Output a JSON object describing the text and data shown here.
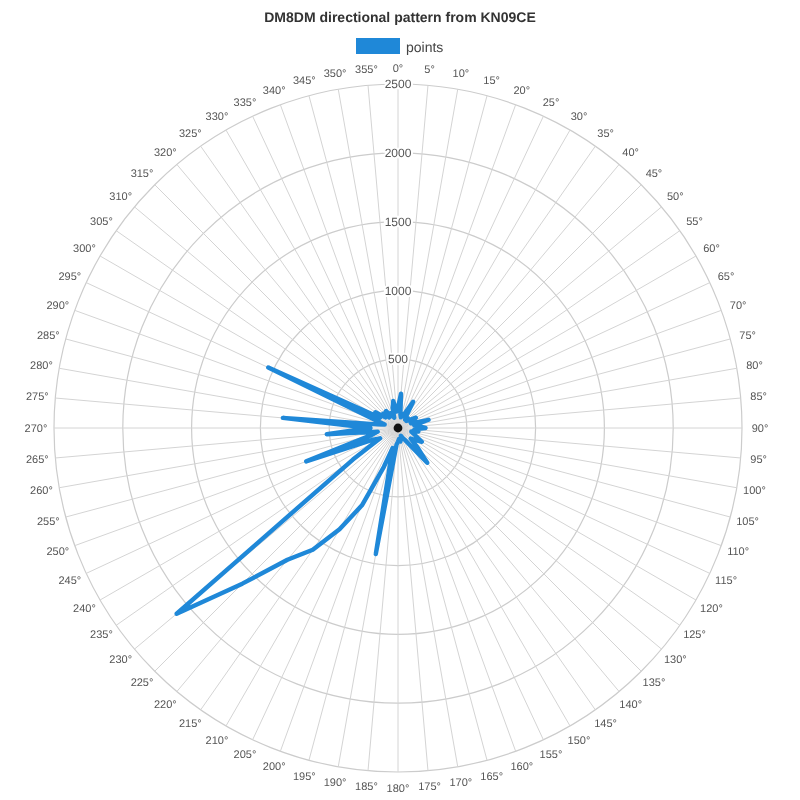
{
  "chart_data": {
    "type": "radar",
    "title": "DM8DM directional pattern from KN09CE",
    "categories": [
      "0°",
      "5°",
      "10°",
      "15°",
      "20°",
      "25°",
      "30°",
      "35°",
      "40°",
      "45°",
      "50°",
      "55°",
      "60°",
      "65°",
      "70°",
      "75°",
      "80°",
      "85°",
      "90°",
      "95°",
      "100°",
      "105°",
      "110°",
      "115°",
      "120°",
      "125°",
      "130°",
      "135°",
      "140°",
      "145°",
      "150°",
      "155°",
      "160°",
      "165°",
      "170°",
      "175°",
      "180°",
      "185°",
      "190°",
      "195°",
      "200°",
      "205°",
      "210°",
      "215°",
      "220°",
      "225°",
      "230°",
      "235°",
      "240°",
      "245°",
      "250°",
      "255°",
      "260°",
      "265°",
      "270°",
      "275°",
      "280°",
      "285°",
      "290°",
      "295°",
      "300°",
      "305°",
      "310°",
      "315°",
      "320°",
      "325°",
      "330°",
      "335°",
      "340°",
      "345°",
      "350°",
      "355°"
    ],
    "series": [
      {
        "name": "points",
        "color": "#1f88d8",
        "values": [
          150,
          250,
          100,
          80,
          100,
          120,
          220,
          100,
          80,
          100,
          80,
          100,
          150,
          120,
          100,
          230,
          120,
          150,
          200,
          120,
          150,
          100,
          120,
          150,
          200,
          150,
          120,
          200,
          330,
          150,
          100,
          80,
          60,
          80,
          100,
          80,
          100,
          120,
          930,
          150,
          300,
          620,
          850,
          1080,
          1250,
          1600,
          2100,
          400,
          150,
          200,
          710,
          200,
          150,
          520,
          200,
          840,
          150,
          100,
          200,
          1040,
          150,
          200,
          120,
          150,
          100,
          150,
          100,
          120,
          80,
          150,
          200,
          120
        ]
      }
    ],
    "ylim": [
      0,
      2500
    ],
    "yticks": [
      500,
      1000,
      1500,
      2000,
      2500
    ],
    "grid": true,
    "legend": "top",
    "marker": "none",
    "line_style": "solid"
  }
}
